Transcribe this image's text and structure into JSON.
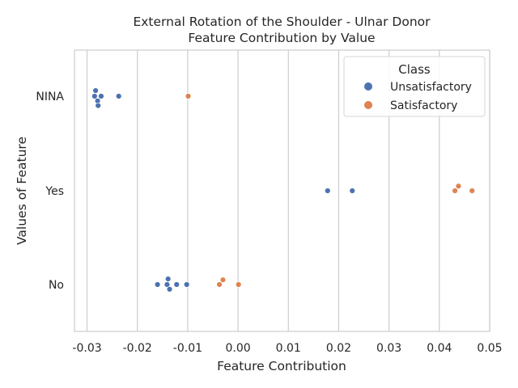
{
  "chart_data": {
    "type": "scatter",
    "title_line1": "External Rotation of the Shoulder - Ulnar Donor",
    "title_line2": "Feature Contribution by Value",
    "xlabel": "Feature Contribution",
    "ylabel": "Values of Feature",
    "xlim": [
      -0.0325,
      0.05
    ],
    "x_ticks": [
      "-0.03",
      "-0.02",
      "-0.01",
      "0.00",
      "0.01",
      "0.02",
      "0.03",
      "0.04",
      "0.05"
    ],
    "x_tick_values": [
      -0.03,
      -0.02,
      -0.01,
      0.0,
      0.01,
      0.02,
      0.03,
      0.04,
      0.05
    ],
    "categories": [
      "NINA",
      "Yes",
      "No"
    ],
    "grid": true,
    "legend": {
      "title": "Class",
      "placement": "top-right",
      "entries": [
        "Unsatisfactory",
        "Satisfactory"
      ]
    },
    "series": [
      {
        "name": "Unsatisfactory",
        "color": "#4c72b0",
        "points": [
          {
            "category": "NINA",
            "x": -0.0283,
            "jitter": 0.06
          },
          {
            "category": "NINA",
            "x": -0.0285,
            "jitter": 0.0
          },
          {
            "category": "NINA",
            "x": -0.0272,
            "jitter": 0.0
          },
          {
            "category": "NINA",
            "x": -0.0279,
            "jitter": -0.05
          },
          {
            "category": "NINA",
            "x": -0.0278,
            "jitter": -0.1
          },
          {
            "category": "NINA",
            "x": -0.0237,
            "jitter": 0.0
          },
          {
            "category": "Yes",
            "x": 0.0178,
            "jitter": 0.0
          },
          {
            "category": "Yes",
            "x": 0.0227,
            "jitter": 0.0
          },
          {
            "category": "No",
            "x": -0.0139,
            "jitter": 0.06
          },
          {
            "category": "No",
            "x": -0.016,
            "jitter": 0.0
          },
          {
            "category": "No",
            "x": -0.0141,
            "jitter": 0.0
          },
          {
            "category": "No",
            "x": -0.0122,
            "jitter": 0.0
          },
          {
            "category": "No",
            "x": -0.0102,
            "jitter": 0.0
          },
          {
            "category": "No",
            "x": -0.0136,
            "jitter": -0.05
          }
        ]
      },
      {
        "name": "Satisfactory",
        "color": "#dd8452",
        "points": [
          {
            "category": "NINA",
            "x": -0.0099,
            "jitter": 0.0
          },
          {
            "category": "Yes",
            "x": 0.0438,
            "jitter": 0.05
          },
          {
            "category": "Yes",
            "x": 0.0431,
            "jitter": 0.0
          },
          {
            "category": "Yes",
            "x": 0.0465,
            "jitter": 0.0
          },
          {
            "category": "No",
            "x": -0.003,
            "jitter": 0.05
          },
          {
            "category": "No",
            "x": -0.0037,
            "jitter": 0.0
          },
          {
            "category": "No",
            "x": 0.0001,
            "jitter": 0.0
          }
        ]
      }
    ]
  }
}
